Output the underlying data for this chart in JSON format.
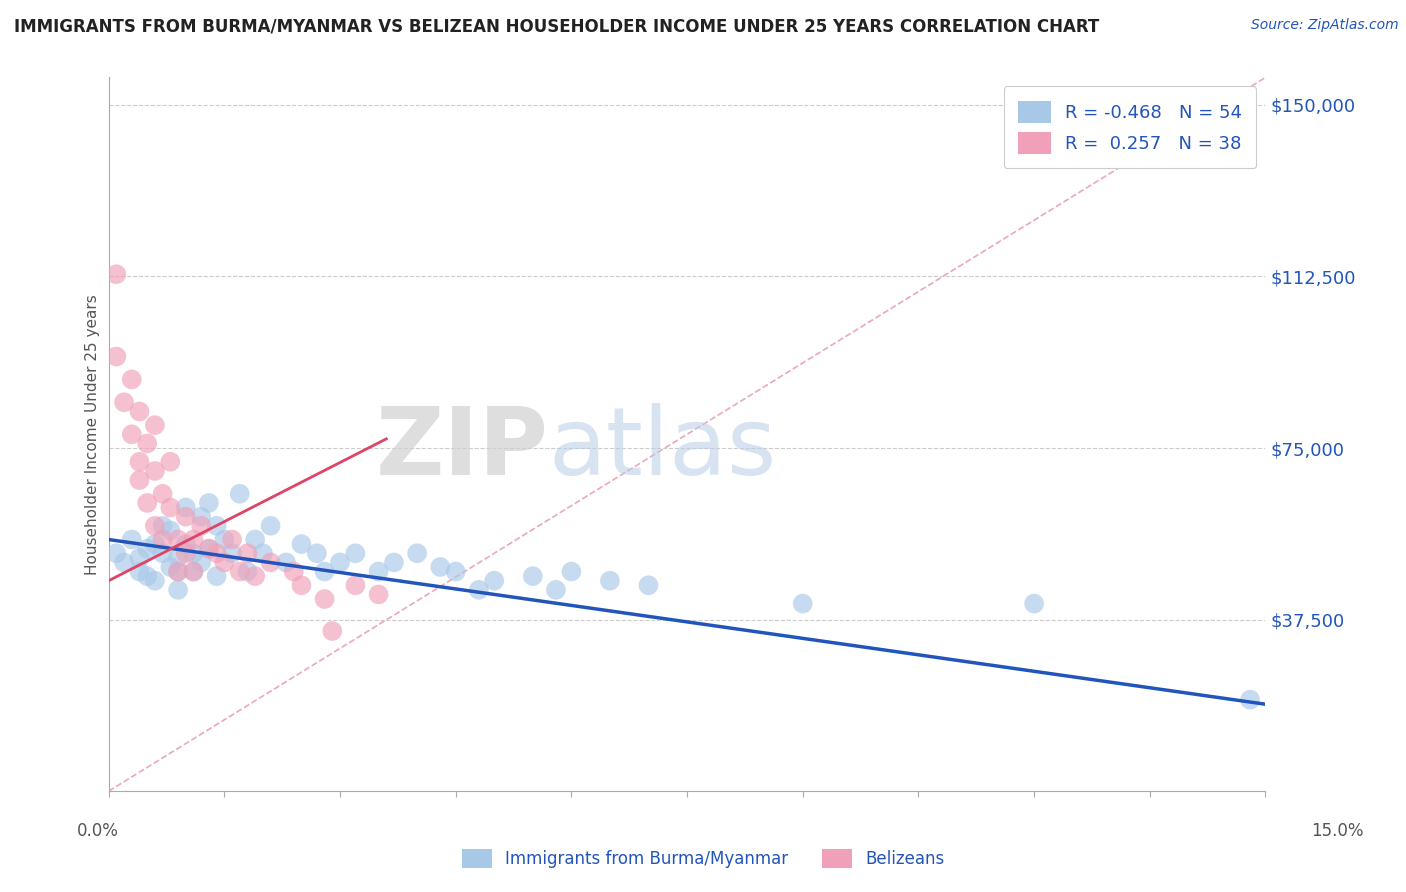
{
  "title": "IMMIGRANTS FROM BURMA/MYANMAR VS BELIZEAN HOUSEHOLDER INCOME UNDER 25 YEARS CORRELATION CHART",
  "source": "Source: ZipAtlas.com",
  "ylabel": "Householder Income Under 25 years",
  "xmin": 0.0,
  "xmax": 0.15,
  "ymin": 0,
  "ymax": 156000,
  "yticks": [
    0,
    37500,
    75000,
    112500,
    150000
  ],
  "ytick_labels": [
    "",
    "$37,500",
    "$75,000",
    "$112,500",
    "$150,000"
  ],
  "r_blue": -0.468,
  "n_blue": 54,
  "r_pink": 0.257,
  "n_pink": 38,
  "color_blue": "#a8c8e8",
  "color_pink": "#f0a0b8",
  "color_blue_line": "#2255bb",
  "color_pink_line": "#dd4466",
  "color_ref_line": "#e8a0b0",
  "watermark_zip": "ZIP",
  "watermark_atlas": "atlas",
  "legend_blue_label": "Immigrants from Burma/Myanmar",
  "legend_pink_label": "Belizeans",
  "blue_x": [
    0.001,
    0.002,
    0.003,
    0.004,
    0.004,
    0.005,
    0.005,
    0.006,
    0.006,
    0.007,
    0.007,
    0.008,
    0.008,
    0.009,
    0.009,
    0.009,
    0.01,
    0.01,
    0.011,
    0.011,
    0.012,
    0.012,
    0.013,
    0.013,
    0.014,
    0.014,
    0.015,
    0.016,
    0.017,
    0.018,
    0.019,
    0.02,
    0.021,
    0.023,
    0.025,
    0.027,
    0.028,
    0.03,
    0.032,
    0.035,
    0.037,
    0.04,
    0.043,
    0.045,
    0.048,
    0.05,
    0.055,
    0.058,
    0.06,
    0.065,
    0.07,
    0.09,
    0.12,
    0.148
  ],
  "blue_y": [
    52000,
    50000,
    55000,
    51000,
    48000,
    53000,
    47000,
    54000,
    46000,
    52000,
    58000,
    49000,
    57000,
    51000,
    48000,
    44000,
    62000,
    54000,
    52000,
    48000,
    60000,
    50000,
    63000,
    53000,
    58000,
    47000,
    55000,
    52000,
    65000,
    48000,
    55000,
    52000,
    58000,
    50000,
    54000,
    52000,
    48000,
    50000,
    52000,
    48000,
    50000,
    52000,
    49000,
    48000,
    44000,
    46000,
    47000,
    44000,
    48000,
    46000,
    45000,
    41000,
    41000,
    20000
  ],
  "pink_x": [
    0.001,
    0.001,
    0.002,
    0.003,
    0.003,
    0.004,
    0.004,
    0.004,
    0.005,
    0.005,
    0.006,
    0.006,
    0.006,
    0.007,
    0.007,
    0.008,
    0.008,
    0.009,
    0.009,
    0.01,
    0.01,
    0.011,
    0.011,
    0.012,
    0.013,
    0.014,
    0.015,
    0.016,
    0.017,
    0.018,
    0.019,
    0.021,
    0.024,
    0.025,
    0.028,
    0.029,
    0.032,
    0.035
  ],
  "pink_y": [
    113000,
    95000,
    85000,
    90000,
    78000,
    72000,
    83000,
    68000,
    76000,
    63000,
    70000,
    80000,
    58000,
    65000,
    55000,
    62000,
    72000,
    55000,
    48000,
    60000,
    52000,
    55000,
    48000,
    58000,
    53000,
    52000,
    50000,
    55000,
    48000,
    52000,
    47000,
    50000,
    48000,
    45000,
    42000,
    35000,
    45000,
    43000
  ],
  "blue_line_x0": 0.0,
  "blue_line_y0": 55000,
  "blue_line_x1": 0.15,
  "blue_line_y1": 19000,
  "pink_line_x0": 0.0,
  "pink_line_y0": 46000,
  "pink_line_x1": 0.036,
  "pink_line_y1": 77000
}
